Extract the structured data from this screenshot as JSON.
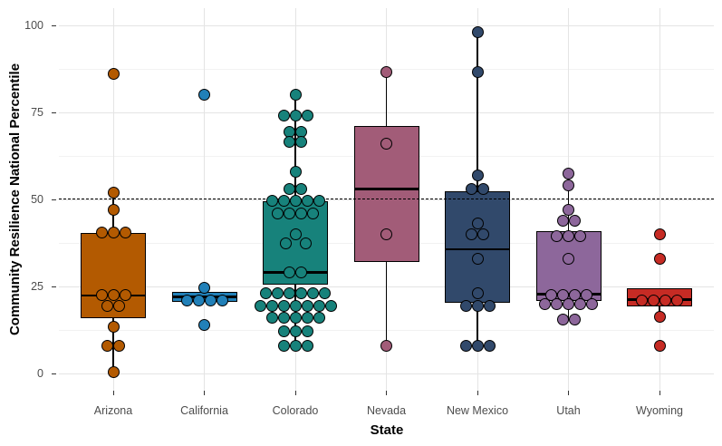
{
  "style": {
    "background": "#FFFFFF",
    "grid_major_color": "#E4E4E4",
    "grid_minor_color": "#F2F2F2",
    "tick_label_color": "#4D4D4D",
    "tick_mark_color": "#333333",
    "axis_title_color": "#000000",
    "box_outline_color": "#000000",
    "reference_line_color": "#000000"
  },
  "chart_data": {
    "type": "boxplot",
    "title": "",
    "xlabel": "State",
    "ylabel": "Community Resilience National Percentile",
    "y_ticks": [
      0,
      25,
      50,
      75,
      100
    ],
    "y_minor_gridlines": [
      12.5,
      37.5,
      62.5,
      87.5
    ],
    "ylim": [
      -5,
      105
    ],
    "legend": "none",
    "grid": "horizontal major+minor, vertical major at each category",
    "reference_line": {
      "value": 50,
      "style": "dashed"
    },
    "categories": [
      "Arizona",
      "California",
      "Colorado",
      "Nevada",
      "New Mexico",
      "Utah",
      "Wyoming"
    ],
    "series": [
      {
        "state": "Arizona",
        "color": "#B35A01",
        "box": {
          "q1": 16,
          "median": 22.4,
          "q3": 40.4,
          "whisker_low": 0.5,
          "whisker_high": 52
        },
        "points": [
          [
            86,
            0
          ],
          [
            52,
            0
          ],
          [
            47,
            0
          ],
          [
            40.5,
            -13
          ],
          [
            40.5,
            0
          ],
          [
            40.5,
            13
          ],
          [
            22.5,
            -13
          ],
          [
            22.5,
            0
          ],
          [
            22.5,
            13
          ],
          [
            19.5,
            -6.5
          ],
          [
            19.5,
            6.5
          ],
          [
            13.5,
            0
          ],
          [
            8,
            -6.5
          ],
          [
            8,
            6.5
          ],
          [
            0.5,
            0
          ]
        ]
      },
      {
        "state": "California",
        "color": "#2180B8",
        "box": {
          "q1": 20.5,
          "median": 22,
          "q3": 23.5,
          "whisker_low": 20.5,
          "whisker_high": 23.5
        },
        "points": [
          [
            80,
            0
          ],
          [
            24.5,
            0
          ],
          [
            21,
            -19.5
          ],
          [
            21,
            -6.5
          ],
          [
            21,
            6.5
          ],
          [
            21,
            19.5
          ],
          [
            14,
            0
          ]
        ]
      },
      {
        "state": "Colorado",
        "color": "#17827B",
        "box": {
          "q1": 25.5,
          "median": 29,
          "q3": 49.5,
          "whisker_low": 8,
          "whisker_high": 80
        },
        "points": [
          [
            80,
            0
          ],
          [
            74,
            -13
          ],
          [
            74,
            0
          ],
          [
            74,
            13
          ],
          [
            69.5,
            -6.5
          ],
          [
            69.5,
            6.5
          ],
          [
            66.5,
            -6.5
          ],
          [
            66.5,
            6.5
          ],
          [
            58,
            0
          ],
          [
            53,
            -6.5
          ],
          [
            53,
            6.5
          ],
          [
            49.5,
            -26
          ],
          [
            49.5,
            -13
          ],
          [
            49.5,
            0
          ],
          [
            49.5,
            13
          ],
          [
            49.5,
            26
          ],
          [
            46,
            -19.5
          ],
          [
            46,
            -6.5
          ],
          [
            46,
            6.5
          ],
          [
            46,
            19.5
          ],
          [
            40,
            0
          ],
          [
            37.5,
            -11
          ],
          [
            37.5,
            11
          ],
          [
            29,
            -6.5
          ],
          [
            29,
            6.5
          ],
          [
            23,
            -32.5
          ],
          [
            23,
            -19.5
          ],
          [
            23,
            -6.5
          ],
          [
            23,
            6.5
          ],
          [
            23,
            19.5
          ],
          [
            23,
            32.5
          ],
          [
            19.5,
            -39
          ],
          [
            19.5,
            -26
          ],
          [
            19.5,
            -13
          ],
          [
            19.5,
            0
          ],
          [
            19.5,
            13
          ],
          [
            19.5,
            26
          ],
          [
            19.5,
            39
          ],
          [
            16,
            -26
          ],
          [
            16,
            -13
          ],
          [
            16,
            0
          ],
          [
            16,
            13
          ],
          [
            16,
            26
          ],
          [
            12,
            -13
          ],
          [
            12,
            0
          ],
          [
            12,
            13
          ],
          [
            8,
            -13
          ],
          [
            8,
            0
          ],
          [
            8,
            13
          ]
        ]
      },
      {
        "state": "Nevada",
        "color": "#A25C78",
        "box": {
          "q1": 32,
          "median": 53,
          "q3": 71,
          "whisker_low": 8,
          "whisker_high": 86.5
        },
        "points": [
          [
            86.5,
            0
          ],
          [
            66,
            0
          ],
          [
            40,
            0
          ],
          [
            8,
            0
          ]
        ]
      },
      {
        "state": "New Mexico",
        "color": "#31496B",
        "box": {
          "q1": 20.3,
          "median": 35.7,
          "q3": 52.3,
          "whisker_low": 8,
          "whisker_high": 98
        },
        "points": [
          [
            98,
            0
          ],
          [
            86.5,
            0
          ],
          [
            57,
            0
          ],
          [
            53,
            -6.5
          ],
          [
            53,
            6.5
          ],
          [
            43,
            0
          ],
          [
            40,
            -6.5
          ],
          [
            40,
            6.5
          ],
          [
            33,
            0
          ],
          [
            23,
            0
          ],
          [
            19.5,
            -13
          ],
          [
            19.5,
            0
          ],
          [
            19.5,
            13
          ],
          [
            8,
            -13
          ],
          [
            8,
            0
          ],
          [
            8,
            13
          ]
        ]
      },
      {
        "state": "Utah",
        "color": "#8D679B",
        "box": {
          "q1": 20.8,
          "median": 22.8,
          "q3": 41,
          "whisker_low": 15.5,
          "whisker_high": 57.5
        },
        "points": [
          [
            57.5,
            0
          ],
          [
            54,
            0
          ],
          [
            47,
            0
          ],
          [
            44,
            -6.5
          ],
          [
            44,
            6.5
          ],
          [
            39.5,
            -13
          ],
          [
            39.5,
            0
          ],
          [
            39.5,
            13
          ],
          [
            33,
            0
          ],
          [
            22.5,
            -19.5
          ],
          [
            22.5,
            -6.5
          ],
          [
            22.5,
            6.5
          ],
          [
            22.5,
            19.5
          ],
          [
            19.8,
            -26
          ],
          [
            19.8,
            -13
          ],
          [
            19.8,
            0
          ],
          [
            19.8,
            13
          ],
          [
            19.8,
            26
          ],
          [
            15.5,
            -6.5
          ],
          [
            15.5,
            6.5
          ]
        ]
      },
      {
        "state": "Wyoming",
        "color": "#C62B24",
        "box": {
          "q1": 19.3,
          "median": 21.3,
          "q3": 24.5,
          "whisker_low": 16.4,
          "whisker_high": 24.5
        },
        "points": [
          [
            40,
            0
          ],
          [
            33,
            0
          ],
          [
            21,
            -19.5
          ],
          [
            21,
            -6.5
          ],
          [
            21,
            6.5
          ],
          [
            21,
            19.5
          ],
          [
            16.4,
            0
          ],
          [
            8,
            0
          ]
        ]
      }
    ]
  }
}
